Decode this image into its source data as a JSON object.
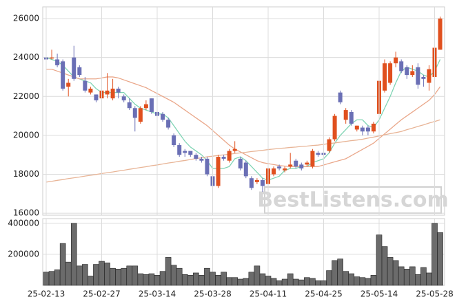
{
  "chart_data": [
    {
      "type": "candlestick",
      "watermark": "BestListens.com",
      "up_color": "#e0501e",
      "down_color": "#6a6fb5",
      "ylim": [
        15900,
        26600
      ],
      "yticks": [
        16000,
        18000,
        20000,
        22000,
        24000,
        26000
      ],
      "grid": true,
      "open": [
        24000,
        23950,
        23900,
        23800,
        22500,
        24000,
        23500,
        22800,
        22200,
        22100,
        21900,
        22100,
        21900,
        22400,
        22000,
        21700,
        21400,
        20700,
        21400,
        21900,
        21200,
        21100,
        20800,
        20000,
        19500,
        19200,
        19200,
        19000,
        18800,
        18800,
        17900,
        17400,
        18900,
        18700,
        19200,
        18800,
        18600,
        17800,
        17600,
        17700,
        17500,
        18000,
        18400,
        18200,
        18400,
        18700,
        18500,
        18500,
        18400,
        19100,
        19100,
        19200,
        19800,
        22200,
        20800,
        21200,
        20300,
        20400,
        20400,
        20200,
        21100,
        22300,
        22700,
        23700,
        23800,
        23500,
        23100,
        23500,
        23000,
        22700,
        23000,
        24400
      ],
      "high": [
        24300,
        24400,
        24200,
        23900,
        22900,
        24600,
        23600,
        23000,
        22500,
        22100,
        22400,
        23200,
        22900,
        22500,
        22100,
        21900,
        21500,
        21500,
        21800,
        21900,
        21300,
        21200,
        20900,
        20100,
        19600,
        19300,
        19200,
        19100,
        18900,
        18900,
        18000,
        19000,
        19000,
        19300,
        19700,
        18900,
        18700,
        17900,
        17800,
        17800,
        18400,
        18400,
        18500,
        18400,
        19100,
        18800,
        18600,
        18700,
        19300,
        19200,
        19200,
        19900,
        21100,
        22300,
        21400,
        21300,
        20500,
        20500,
        20500,
        20700,
        22900,
        23900,
        23800,
        24300,
        23900,
        23600,
        23600,
        23700,
        23100,
        23600,
        24600,
        26100
      ],
      "low": [
        23800,
        23900,
        23500,
        22300,
        22000,
        22800,
        23000,
        22200,
        22100,
        21700,
        21700,
        21900,
        21800,
        21900,
        21700,
        21300,
        20200,
        20600,
        21300,
        21100,
        20900,
        20700,
        20300,
        19400,
        18900,
        18900,
        18900,
        18700,
        18600,
        17900,
        17300,
        17300,
        18700,
        18600,
        19100,
        18200,
        17800,
        17200,
        17500,
        17100,
        17400,
        17900,
        18200,
        18100,
        18300,
        18300,
        18200,
        18400,
        18300,
        18900,
        18900,
        19100,
        19700,
        21600,
        20600,
        20500,
        20200,
        20000,
        20000,
        20100,
        21000,
        22200,
        22600,
        23500,
        23200,
        22900,
        23000,
        22400,
        22500,
        22300,
        22500,
        24400
      ],
      "close": [
        23900,
        24000,
        23600,
        22400,
        22700,
        22900,
        23100,
        22300,
        22400,
        21800,
        22300,
        22300,
        22400,
        22200,
        21800,
        21400,
        20900,
        21400,
        21600,
        21200,
        21000,
        20800,
        20400,
        19500,
        19000,
        19100,
        19000,
        18800,
        18700,
        18000,
        17400,
        18900,
        18800,
        19200,
        19300,
        18300,
        17900,
        17300,
        17700,
        17400,
        18300,
        18300,
        18300,
        18300,
        18500,
        18400,
        18300,
        18600,
        19200,
        19000,
        19000,
        19800,
        21000,
        21700,
        21300,
        20600,
        20500,
        20200,
        20200,
        20600,
        22800,
        23700,
        23700,
        24000,
        23300,
        23100,
        23300,
        22600,
        22900,
        23400,
        24500,
        26000
      ],
      "series": [
        {
          "color": "#7fd4b4",
          "values": [
            24000,
            23900,
            23800,
            23600,
            23300,
            23000,
            22900,
            22800,
            22700,
            22400,
            22200,
            22200,
            22200,
            22200,
            22200,
            21900,
            21600,
            21400,
            21300,
            21200,
            21100,
            21100,
            20900,
            20500,
            20100,
            19700,
            19400,
            19200,
            19000,
            18700,
            18300,
            18300,
            18300,
            18400,
            18800,
            18900,
            18700,
            18400,
            18100,
            17800,
            17700,
            17800,
            17900,
            18200,
            18300,
            18300,
            18400,
            18400,
            18600,
            18700,
            18800,
            19100,
            19600,
            20000,
            20300,
            20600,
            20800,
            20800,
            20500,
            20400,
            20800,
            21400,
            22000,
            22700,
            23300,
            23500,
            23400,
            23300,
            23100,
            23000,
            23300,
            23900
          ]
        },
        {
          "color": "#eaa78a",
          "values": [
            23400,
            23400,
            23300,
            23200,
            23100,
            23000,
            22900,
            22900,
            22900,
            22900,
            22950,
            23000,
            23000,
            22950,
            22850,
            22750,
            22650,
            22550,
            22450,
            22300,
            22150,
            22000,
            21850,
            21700,
            21500,
            21300,
            21100,
            20900,
            20700,
            20500,
            20250,
            20000,
            19750,
            19500,
            19300,
            19150,
            19000,
            18850,
            18700,
            18600,
            18550,
            18500,
            18450,
            18420,
            18400,
            18400,
            18400,
            18400,
            18400,
            18400,
            18480,
            18560,
            18640,
            18720,
            18800,
            18960,
            19120,
            19280,
            19440,
            19600,
            19840,
            20080,
            20320,
            20560,
            20800,
            21000,
            21200,
            21400,
            21600,
            21800,
            22100,
            22500
          ]
        },
        {
          "color": "#e8b496",
          "values": [
            17600,
            17640,
            17690,
            17730,
            17780,
            17820,
            17860,
            17910,
            17950,
            17990,
            18040,
            18080,
            18120,
            18170,
            18210,
            18260,
            18300,
            18350,
            18390,
            18440,
            18480,
            18530,
            18580,
            18620,
            18670,
            18710,
            18760,
            18810,
            18850,
            18900,
            18930,
            18970,
            19000,
            19030,
            19070,
            19100,
            19130,
            19170,
            19200,
            19230,
            19270,
            19300,
            19330,
            19350,
            19380,
            19400,
            19430,
            19450,
            19480,
            19500,
            19540,
            19580,
            19610,
            19650,
            19690,
            19730,
            19760,
            19800,
            19860,
            19910,
            19970,
            20030,
            20090,
            20140,
            20200,
            20290,
            20370,
            20460,
            20540,
            20630,
            20710,
            20800
          ]
        }
      ]
    },
    {
      "type": "bar",
      "color": "#6b6b6b",
      "ylim": [
        0,
        430000
      ],
      "yticks": [
        200000,
        400000
      ],
      "grid": true,
      "categories": [
        "25-02-13",
        null,
        null,
        null,
        null,
        null,
        null,
        null,
        null,
        null,
        "25-02-27",
        null,
        null,
        null,
        null,
        null,
        null,
        null,
        null,
        null,
        "25-03-14",
        null,
        null,
        null,
        null,
        null,
        null,
        null,
        null,
        null,
        "25-03-28",
        null,
        null,
        null,
        null,
        null,
        null,
        null,
        null,
        null,
        "25-04-11",
        null,
        null,
        null,
        null,
        null,
        null,
        null,
        null,
        null,
        "25-04-25",
        null,
        null,
        null,
        null,
        null,
        null,
        null,
        null,
        null,
        "25-05-14",
        null,
        null,
        null,
        null,
        null,
        null,
        null,
        null,
        null,
        "25-05-28",
        null
      ],
      "values": [
        85000,
        90000,
        100000,
        270000,
        150000,
        400000,
        125000,
        135000,
        60000,
        135000,
        155000,
        145000,
        110000,
        105000,
        110000,
        125000,
        125000,
        75000,
        70000,
        75000,
        65000,
        90000,
        180000,
        130000,
        110000,
        70000,
        65000,
        80000,
        65000,
        110000,
        85000,
        65000,
        85000,
        50000,
        50000,
        40000,
        45000,
        85000,
        125000,
        75000,
        60000,
        45000,
        30000,
        40000,
        75000,
        40000,
        35000,
        50000,
        45000,
        30000,
        30000,
        95000,
        160000,
        170000,
        90000,
        75000,
        55000,
        50000,
        45000,
        65000,
        325000,
        250000,
        180000,
        160000,
        120000,
        105000,
        120000,
        70000,
        115000,
        80000,
        400000,
        340000
      ]
    }
  ]
}
